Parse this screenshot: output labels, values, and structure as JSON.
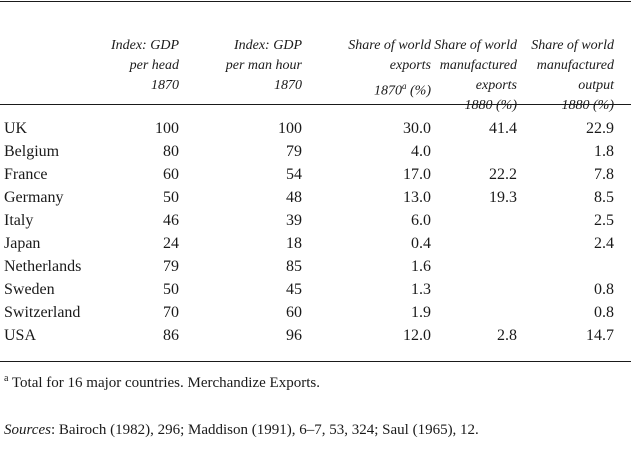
{
  "table": {
    "headers": [
      {
        "text": "Index: GDP\nper head\n1870",
        "sup": "",
        "after": ""
      },
      {
        "text": "Index: GDP\nper man hour\n1870",
        "sup": "",
        "after": ""
      },
      {
        "text": "Share of world\nexports\n1870",
        "sup": "a",
        "after": " (%)"
      },
      {
        "text": "Share of world\nmanufactured\nexports\n1880 (%)",
        "sup": "",
        "after": ""
      },
      {
        "text": "Share of world\nmanufactured\noutput\n1880 (%)",
        "sup": "",
        "after": ""
      }
    ],
    "rows": [
      {
        "country": "UK",
        "gdp_per_head": "100",
        "gdp_per_man_hour": "100",
        "share_exports": "30.0",
        "share_manuf_exports": "41.4",
        "share_manuf_output": "22.9"
      },
      {
        "country": "Belgium",
        "gdp_per_head": "80",
        "gdp_per_man_hour": "79",
        "share_exports": "4.0",
        "share_manuf_exports": "",
        "share_manuf_output": "1.8"
      },
      {
        "country": "France",
        "gdp_per_head": "60",
        "gdp_per_man_hour": "54",
        "share_exports": "17.0",
        "share_manuf_exports": "22.2",
        "share_manuf_output": "7.8"
      },
      {
        "country": "Germany",
        "gdp_per_head": "50",
        "gdp_per_man_hour": "48",
        "share_exports": "13.0",
        "share_manuf_exports": "19.3",
        "share_manuf_output": "8.5"
      },
      {
        "country": "Italy",
        "gdp_per_head": "46",
        "gdp_per_man_hour": "39",
        "share_exports": "6.0",
        "share_manuf_exports": "",
        "share_manuf_output": "2.5"
      },
      {
        "country": "Japan",
        "gdp_per_head": "24",
        "gdp_per_man_hour": "18",
        "share_exports": "0.4",
        "share_manuf_exports": "",
        "share_manuf_output": "2.4"
      },
      {
        "country": "Netherlands",
        "gdp_per_head": "79",
        "gdp_per_man_hour": "85",
        "share_exports": "1.6",
        "share_manuf_exports": "",
        "share_manuf_output": ""
      },
      {
        "country": "Sweden",
        "gdp_per_head": "50",
        "gdp_per_man_hour": "45",
        "share_exports": "1.3",
        "share_manuf_exports": "",
        "share_manuf_output": "0.8"
      },
      {
        "country": "Switzerland",
        "gdp_per_head": "70",
        "gdp_per_man_hour": "60",
        "share_exports": "1.9",
        "share_manuf_exports": "",
        "share_manuf_output": "0.8"
      },
      {
        "country": "USA",
        "gdp_per_head": "86",
        "gdp_per_man_hour": "96",
        "share_exports": "12.0",
        "share_manuf_exports": "2.8",
        "share_manuf_output": "14.7"
      }
    ]
  },
  "footnote": {
    "marker": "a",
    "text": " Total for 16 major countries. Merchandize Exports."
  },
  "sources": {
    "label": "Sources",
    "text": ": Bairoch (1982), 296; Maddison (1991), 6–7, 53, 324; Saul (1965), 12."
  }
}
